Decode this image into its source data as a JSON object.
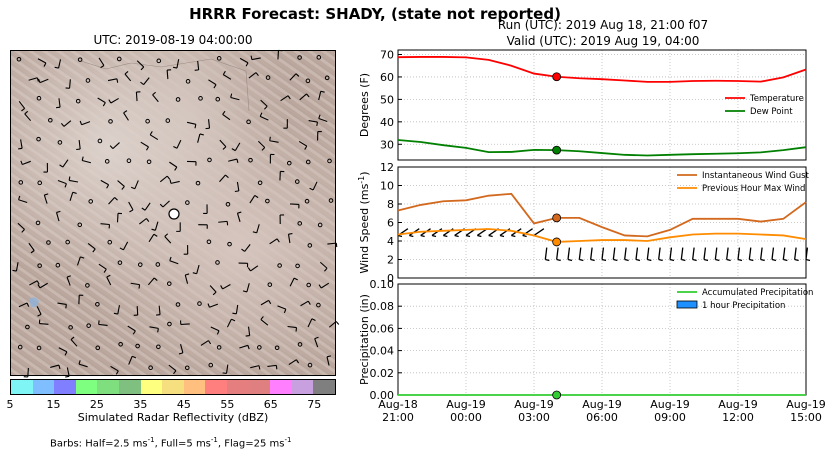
{
  "title": "HRRR Forecast: SHADY, (state not reported)",
  "map": {
    "title": "UTC: 2019-08-19 04:00:00",
    "colorbar": {
      "colors": [
        "#7ff5f5",
        "#7fbfff",
        "#7f7fff",
        "#7fff7f",
        "#7fdf7f",
        "#7fbf7f",
        "#ffff7f",
        "#f5df7f",
        "#ffbf7f",
        "#ff7f7f",
        "#e57f7f",
        "#df7f7f",
        "#ff7fff",
        "#c8a0df",
        "#7f7f7f"
      ],
      "ticks": [
        "5",
        "15",
        "25",
        "35",
        "45",
        "55",
        "65",
        "75"
      ],
      "label": "Simulated Radar Reflectivity (dBZ)"
    },
    "barbs_note_prefix": "Barbs: Half=2.5 ms",
    "barbs_note_mid1": ", Full=5 ms",
    "barbs_note_mid2": ", Flag=25 ms",
    "barbs_note_exp": "-1"
  },
  "header": {
    "run": "Run (UTC): 2019 Aug 18, 21:00 f07",
    "valid": "Valid (UTC): 2019 Aug 19, 04:00"
  },
  "chart_data": [
    {
      "type": "line",
      "ylabel": "Degrees (F)",
      "ylim": [
        23,
        72
      ],
      "yticks": [
        30,
        40,
        50,
        60,
        70
      ],
      "grid": true,
      "legend": "right",
      "series": [
        {
          "name": "Temperature",
          "color": "#ff0000",
          "x": [
            0,
            1,
            2,
            3,
            4,
            5,
            6,
            7,
            8,
            9,
            10,
            11,
            12,
            13,
            14,
            15,
            16,
            17,
            18
          ],
          "values": [
            68.8,
            68.9,
            68.9,
            68.7,
            67.6,
            65.0,
            61.5,
            60.1,
            59.4,
            59.0,
            58.4,
            57.8,
            57.8,
            58.2,
            58.3,
            58.2,
            57.9,
            59.8,
            63.3
          ]
        },
        {
          "name": "Dew Point",
          "color": "#008000",
          "x": [
            0,
            1,
            2,
            3,
            4,
            5,
            6,
            7,
            8,
            9,
            10,
            11,
            12,
            13,
            14,
            15,
            16,
            17,
            18
          ],
          "values": [
            31.9,
            31.0,
            29.6,
            28.4,
            26.5,
            26.6,
            27.5,
            27.4,
            26.9,
            26.1,
            25.3,
            25.0,
            25.3,
            25.6,
            25.8,
            26.0,
            26.4,
            27.4,
            28.7
          ]
        }
      ],
      "marker_x": 7
    },
    {
      "type": "line",
      "ylabel": "Wind Speed (ms",
      "ylabel_exp": "-1",
      "ylim": [
        0,
        12
      ],
      "yticks": [
        0,
        2,
        4,
        6,
        8,
        10,
        12
      ],
      "grid": true,
      "legend": "top-right",
      "series": [
        {
          "name": "Instantaneous Wind Gust",
          "color": "#d2691e",
          "x": [
            0,
            1,
            2,
            3,
            4,
            5,
            6,
            7,
            8,
            9,
            10,
            11,
            12,
            13,
            14,
            15,
            16,
            17,
            18
          ],
          "values": [
            7.3,
            7.9,
            8.3,
            8.4,
            8.9,
            9.1,
            5.9,
            6.5,
            6.5,
            5.5,
            4.6,
            4.5,
            5.2,
            6.4,
            6.4,
            6.4,
            6.1,
            6.4,
            8.2
          ]
        },
        {
          "name": "Previous Hour Max Wind",
          "color": "#ff8c00",
          "x": [
            0,
            1,
            2,
            3,
            4,
            5,
            6,
            7,
            8,
            9,
            10,
            11,
            12,
            13,
            14,
            15,
            16,
            17,
            18
          ],
          "values": [
            4.7,
            5.0,
            5.1,
            5.2,
            5.3,
            5.1,
            4.6,
            3.9,
            4.0,
            4.1,
            4.1,
            4.0,
            4.4,
            4.7,
            4.8,
            4.8,
            4.7,
            4.6,
            4.2
          ]
        }
      ],
      "marker_x": 7
    },
    {
      "type": "line",
      "ylabel": "Precipitation (in)",
      "ylim": [
        0,
        0.1
      ],
      "yticks": [
        "0.00",
        "0.02",
        "0.04",
        "0.06",
        "0.08",
        "0.10"
      ],
      "grid": true,
      "legend": "top-right",
      "series": [
        {
          "name": "Accumulated Precipitation",
          "color": "#32cd32",
          "x": [
            0,
            1,
            2,
            3,
            4,
            5,
            6,
            7,
            8,
            9,
            10,
            11,
            12,
            13,
            14,
            15,
            16,
            17,
            18
          ],
          "values": [
            0,
            0,
            0,
            0,
            0,
            0,
            0,
            0,
            0,
            0,
            0,
            0,
            0,
            0,
            0,
            0,
            0,
            0,
            0
          ]
        },
        {
          "name": "1 hour Precipitation",
          "color": "#1e90ff",
          "kind": "bar",
          "values": [
            0,
            0,
            0,
            0,
            0,
            0,
            0,
            0,
            0,
            0,
            0,
            0,
            0,
            0,
            0,
            0,
            0,
            0,
            0
          ]
        }
      ],
      "marker_x": 7,
      "xticks": [
        {
          "line1": "Aug-18",
          "line2": "21:00"
        },
        {
          "line1": "Aug-19",
          "line2": "00:00"
        },
        {
          "line1": "Aug-19",
          "line2": "03:00"
        },
        {
          "line1": "Aug-19",
          "line2": "06:00"
        },
        {
          "line1": "Aug-19",
          "line2": "09:00"
        },
        {
          "line1": "Aug-19",
          "line2": "12:00"
        },
        {
          "line1": "Aug-19",
          "line2": "15:00"
        }
      ]
    }
  ]
}
